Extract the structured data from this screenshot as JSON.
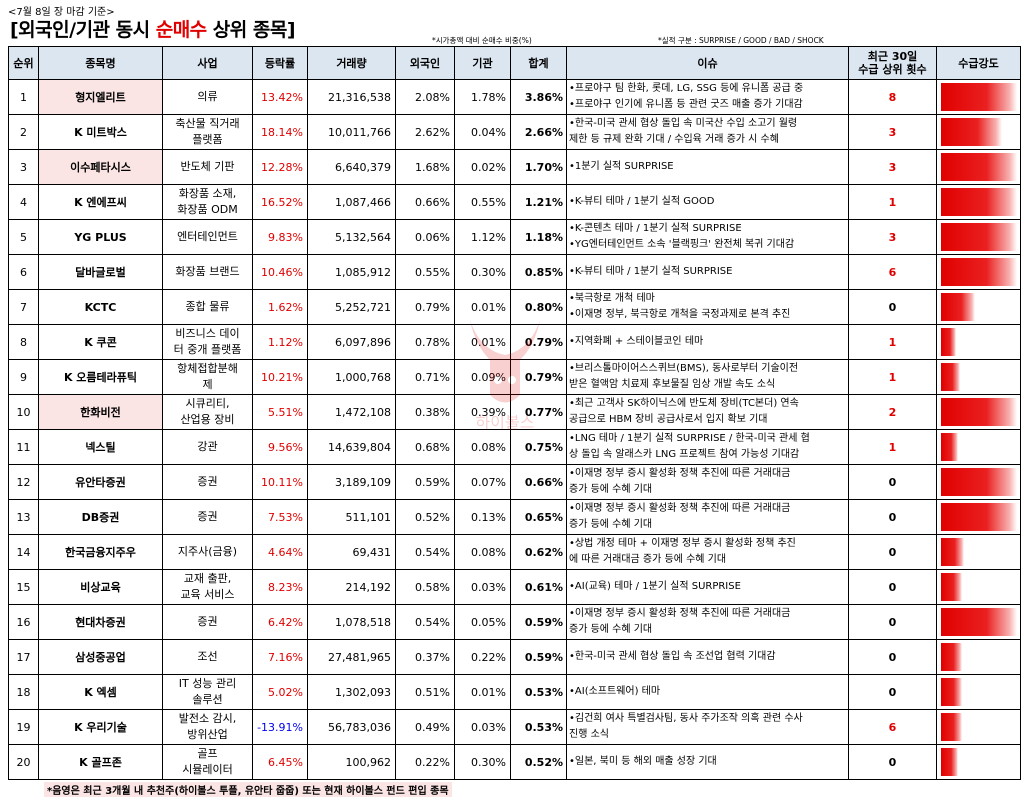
{
  "header": {
    "date_label": "<7월 8일 장 마감 기준>",
    "title_prefix": "[외국인/기관 동시 ",
    "title_highlight": "순매수",
    "title_suffix": " 상위 종목]",
    "note_left": "*시가총액 대비 순매수 비중(%)",
    "note_right": "*실적 구분 : SURPRISE / GOOD / BAD / SHOCK"
  },
  "columns": [
    "순위",
    "종목명",
    "사업",
    "등락률",
    "거래량",
    "외국인",
    "기관",
    "합계",
    "이슈",
    "최근 30일\n수급 상위 횟수",
    "수급강도"
  ],
  "colors": {
    "header_bg": "#dce6f1",
    "highlight_pink": "#fbe4e4",
    "up_red": "#e00000",
    "down_blue": "#0000ee"
  },
  "rows": [
    {
      "rank": "1",
      "name": "형지엘리트",
      "pink": true,
      "biz": [
        "의류"
      ],
      "rate": "13.42%",
      "neg": false,
      "volume": "21,316,538",
      "foreign": "2.08%",
      "inst": "1.78%",
      "total": "3.86%",
      "issue": [
        "•프로야구 팀 한화, 롯데, LG, SSG 등에 유니폼 공급 중",
        "•프로야구 인기에 유니폼 등 관련 굿즈 매출 증가 기대감"
      ],
      "count": "8",
      "strength": 1.0
    },
    {
      "rank": "2",
      "name": "K 미트박스",
      "pink": false,
      "biz": [
        "축산물 직거래",
        "플랫폼"
      ],
      "rate": "18.14%",
      "neg": false,
      "volume": "10,011,766",
      "foreign": "2.62%",
      "inst": "0.04%",
      "total": "2.66%",
      "issue": [
        "•한국-미국 관세 협상 돌입 속 미국산 수입 소고기 월령",
        "제한 등 규제 완화 기대 / 수입육 거래 증가 시 수혜"
      ],
      "count": "3",
      "strength": 0.8
    },
    {
      "rank": "3",
      "name": "이수페타시스",
      "pink": true,
      "biz": [
        "반도체 기판"
      ],
      "rate": "12.28%",
      "neg": false,
      "volume": "6,640,379",
      "foreign": "1.68%",
      "inst": "0.02%",
      "total": "1.70%",
      "issue": [
        "•1분기 실적 SURPRISE"
      ],
      "count": "3",
      "strength": 1.0
    },
    {
      "rank": "4",
      "name": "K 엔에프씨",
      "pink": false,
      "biz": [
        "화장품 소재,",
        "화장품 ODM"
      ],
      "rate": "16.52%",
      "neg": false,
      "volume": "1,087,466",
      "foreign": "0.66%",
      "inst": "0.55%",
      "total": "1.21%",
      "issue": [
        "•K-뷰티 테마 / 1분기 실적 GOOD"
      ],
      "count": "1",
      "strength": 1.0
    },
    {
      "rank": "5",
      "name": "YG PLUS",
      "pink": false,
      "biz": [
        "엔터테인먼트"
      ],
      "rate": "9.83%",
      "neg": false,
      "volume": "5,132,564",
      "foreign": "0.06%",
      "inst": "1.12%",
      "total": "1.18%",
      "issue": [
        "•K-콘텐츠 테마 / 1분기 실적 SURPRISE",
        "•YG엔터테인먼트 소속 '블랙핑크' 완전체 복귀 기대감"
      ],
      "count": "3",
      "strength": 1.0
    },
    {
      "rank": "6",
      "name": "달바글로벌",
      "pink": false,
      "biz": [
        "화장품 브랜드"
      ],
      "rate": "10.46%",
      "neg": false,
      "volume": "1,085,912",
      "foreign": "0.55%",
      "inst": "0.30%",
      "total": "0.85%",
      "issue": [
        "•K-뷰티 테마 / 1분기 실적 SURPRISE"
      ],
      "count": "6",
      "strength": 1.0
    },
    {
      "rank": "7",
      "name": "KCTC",
      "pink": false,
      "biz": [
        "종합 물류"
      ],
      "rate": "1.62%",
      "neg": false,
      "volume": "5,252,721",
      "foreign": "0.79%",
      "inst": "0.01%",
      "total": "0.80%",
      "issue": [
        "•북극항로 개척 테마",
        "•이재명 정부, 북극항로 개척을 국정과제로 본격 추진"
      ],
      "count": "0",
      "strength": 0.45
    },
    {
      "rank": "8",
      "name": "K 쿠콘",
      "pink": false,
      "biz": [
        "비즈니스 데이",
        "터 중개 플랫폼"
      ],
      "rate": "1.12%",
      "neg": false,
      "volume": "6,097,896",
      "foreign": "0.78%",
      "inst": "0.01%",
      "total": "0.79%",
      "issue": [
        "•지역화폐 + 스테이블코인 테마"
      ],
      "count": "1",
      "strength": 0.2
    },
    {
      "rank": "9",
      "name": "K 오름테라퓨틱",
      "pink": false,
      "biz": [
        "항체접합분해",
        "제"
      ],
      "rate": "10.21%",
      "neg": false,
      "volume": "1,000,768",
      "foreign": "0.71%",
      "inst": "0.09%",
      "total": "0.79%",
      "issue": [
        "•브리스톨마이어스스퀴브(BMS), 동사로부터 기술이전",
        "받은 혈액암 치료제 후보물질 임상 개발 속도 소식"
      ],
      "count": "1",
      "strength": 0.25
    },
    {
      "rank": "10",
      "name": "한화비전",
      "pink": true,
      "biz": [
        "시큐리티,",
        "산업용 장비"
      ],
      "rate": "5.51%",
      "neg": false,
      "volume": "1,472,108",
      "foreign": "0.38%",
      "inst": "0.39%",
      "total": "0.77%",
      "issue": [
        "•최근 고객사 SK하이닉스에 반도체 장비(TC본더) 연속",
        "공급으로 HBM 장비 공급사로서 입지 확보 기대"
      ],
      "count": "2",
      "strength": 1.0
    },
    {
      "rank": "11",
      "name": "넥스틸",
      "pink": false,
      "biz": [
        "강관"
      ],
      "rate": "9.56%",
      "neg": false,
      "volume": "14,639,804",
      "foreign": "0.68%",
      "inst": "0.08%",
      "total": "0.75%",
      "issue": [
        "•LNG 테마 / 1분기 실적 SURPRISE / 한국-미국 관세 협",
        "상 돌입 속 알래스카 LNG 프로젝트 참여 가능성 기대감"
      ],
      "count": "1",
      "strength": 0.22
    },
    {
      "rank": "12",
      "name": "유안타증권",
      "pink": false,
      "biz": [
        "증권"
      ],
      "rate": "10.11%",
      "neg": false,
      "volume": "3,189,109",
      "foreign": "0.59%",
      "inst": "0.07%",
      "total": "0.66%",
      "issue": [
        "•이재명 정부 증시 활성화 정책 추진에 따른 거래대금",
        "증가 등에 수혜 기대"
      ],
      "count": "0",
      "strength": 1.0
    },
    {
      "rank": "13",
      "name": "DB증권",
      "pink": false,
      "biz": [
        "증권"
      ],
      "rate": "7.53%",
      "neg": false,
      "volume": "511,101",
      "foreign": "0.52%",
      "inst": "0.13%",
      "total": "0.65%",
      "issue": [
        "•이재명 정부 증시 활성화 정책 추진에 따른 거래대금",
        "증가 등에 수혜 기대"
      ],
      "count": "0",
      "strength": 1.0
    },
    {
      "rank": "14",
      "name": "한국금융지주우",
      "pink": false,
      "biz": [
        "지주사(금융)"
      ],
      "rate": "4.64%",
      "neg": false,
      "volume": "69,431",
      "foreign": "0.54%",
      "inst": "0.08%",
      "total": "0.62%",
      "issue": [
        "•상법 개정 테마 + 이재명 정부 증시 활성화 정책 추진",
        "에 따른 거래대금 증가 등에 수혜 기대"
      ],
      "count": "0",
      "strength": 0.3
    },
    {
      "rank": "15",
      "name": "비상교육",
      "pink": false,
      "biz": [
        "교재 출판,",
        "교육 서비스"
      ],
      "rate": "8.23%",
      "neg": false,
      "volume": "214,192",
      "foreign": "0.58%",
      "inst": "0.03%",
      "total": "0.61%",
      "issue": [
        "•AI(교육) 테마 / 1분기 실적 SURPRISE"
      ],
      "count": "0",
      "strength": 0.28
    },
    {
      "rank": "16",
      "name": "현대차증권",
      "pink": false,
      "biz": [
        "증권"
      ],
      "rate": "6.42%",
      "neg": false,
      "volume": "1,078,518",
      "foreign": "0.54%",
      "inst": "0.05%",
      "total": "0.59%",
      "issue": [
        "•이재명 정부 증시 활성화 정책 추진에 따른 거래대금",
        "증가 등에 수혜 기대"
      ],
      "count": "0",
      "strength": 1.0
    },
    {
      "rank": "17",
      "name": "삼성중공업",
      "pink": false,
      "biz": [
        "조선"
      ],
      "rate": "7.16%",
      "neg": false,
      "volume": "27,481,965",
      "foreign": "0.37%",
      "inst": "0.22%",
      "total": "0.59%",
      "issue": [
        "•한국-미국 관세 협상 돌입 속 조선업 협력 기대감"
      ],
      "count": "0",
      "strength": 0.28
    },
    {
      "rank": "18",
      "name": "K 엑셈",
      "pink": false,
      "biz": [
        "IT 성능 관리",
        "솔루션"
      ],
      "rate": "5.02%",
      "neg": false,
      "volume": "1,302,093",
      "foreign": "0.51%",
      "inst": "0.01%",
      "total": "0.53%",
      "issue": [
        "•AI(소프트웨어) 테마"
      ],
      "count": "0",
      "strength": 0.28
    },
    {
      "rank": "19",
      "name": "K 우리기술",
      "pink": false,
      "biz": [
        "발전소 감시,",
        "방위산업"
      ],
      "rate": "-13.91%",
      "neg": true,
      "volume": "56,783,036",
      "foreign": "0.49%",
      "inst": "0.03%",
      "total": "0.53%",
      "issue": [
        "•김건희 여사 특별검사팀, 동사 주가조작 의혹 관련 수사",
        "진행 소식"
      ],
      "count": "6",
      "strength": 0.28
    },
    {
      "rank": "20",
      "name": "K 골프존",
      "pink": false,
      "biz": [
        "골프",
        "시뮬레이터"
      ],
      "rate": "6.45%",
      "neg": false,
      "volume": "100,962",
      "foreign": "0.22%",
      "inst": "0.30%",
      "total": "0.52%",
      "issue": [
        "•일본, 북미 등 해외 매출 성장 기대"
      ],
      "count": "0",
      "strength": 0.22
    }
  ],
  "footnote": "*음영은 최근 3개월 내 추천주(하이볼스 투플, 유안타 줍줍) 또는 현재 하이볼스 펀드 편입 종목",
  "watermark": {
    "icon": "bull-logo-icon",
    "text": "하이볼스"
  }
}
